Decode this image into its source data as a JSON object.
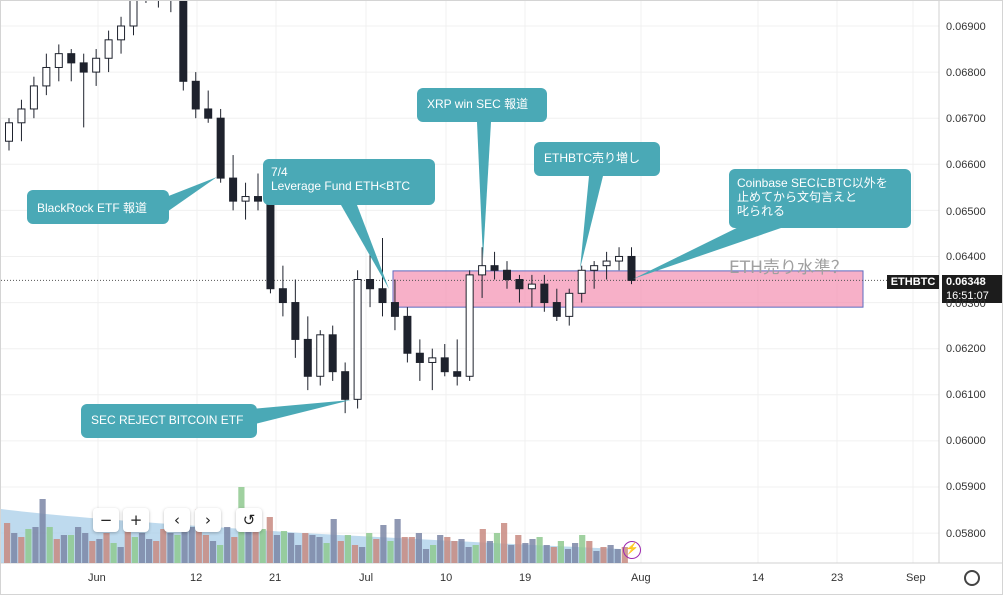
{
  "symbol": "ETHBTC",
  "last_price": "0.06348",
  "countdown": "16:51:07",
  "zone_label": "ETH売り水準？",
  "y_axis": [
    "0.06900",
    "0.06800",
    "0.06700",
    "0.06600",
    "0.06500",
    "0.06400",
    "0.06300",
    "0.06200",
    "0.06100",
    "0.06000",
    "0.05900",
    "0.05800"
  ],
  "x_axis": [
    "Jun",
    "12",
    "21",
    "Jul",
    "10",
    "19",
    "Aug",
    "14",
    "23",
    "Sep"
  ],
  "callouts": {
    "blackrock": "BlackRock ETF 報道",
    "leverage_1": "7/4",
    "leverage_2": "Leverage Fund ETH<BTC",
    "xrp": "XRP win SEC 報道",
    "ethbtc": "ETHBTC売り増し",
    "coinbase_1": "Coinbase SECにBTC以外を",
    "coinbase_2": "止めてから文句言えと",
    "coinbase_3": "叱られる",
    "sec_reject": "SEC REJECT BITCOIN ETF"
  },
  "controls": {
    "zoom_out": "−",
    "zoom_in": "+",
    "back": "‹",
    "forward": "›",
    "reset": "↺"
  },
  "icons": [
    "settings-icon",
    "lightning-icon"
  ],
  "colors": {
    "up": "#ffffff",
    "down": "#1e222d",
    "zone": "#f48fb1",
    "callout": "#4aa9b6",
    "vol_up": "#8fc98f",
    "vol_down": "#c88a80"
  },
  "chart_data": {
    "type": "candlestick",
    "symbol": "ETHBTC",
    "ylim": [
      0.0575,
      0.0699
    ],
    "xlabel": "",
    "ylabel": "",
    "candles_ohlc": [
      [
        0.0665,
        0.067,
        0.0663,
        0.0669
      ],
      [
        0.0669,
        0.0674,
        0.0665,
        0.0672
      ],
      [
        0.0672,
        0.0679,
        0.067,
        0.0677
      ],
      [
        0.0677,
        0.0684,
        0.0675,
        0.0681
      ],
      [
        0.0681,
        0.0686,
        0.0678,
        0.0684
      ],
      [
        0.0684,
        0.0685,
        0.0678,
        0.0682
      ],
      [
        0.0682,
        0.0684,
        0.0668,
        0.068
      ],
      [
        0.068,
        0.0685,
        0.0677,
        0.0683
      ],
      [
        0.0683,
        0.0689,
        0.068,
        0.0687
      ],
      [
        0.0687,
        0.0692,
        0.0684,
        0.069
      ],
      [
        0.069,
        0.0699,
        0.0688,
        0.0699
      ],
      [
        0.0699,
        0.07,
        0.0695,
        0.0698
      ],
      [
        0.0698,
        0.07,
        0.0694,
        0.0696
      ],
      [
        0.0696,
        0.0699,
        0.0693,
        0.0698
      ],
      [
        0.0698,
        0.0699,
        0.0676,
        0.0678
      ],
      [
        0.0678,
        0.068,
        0.067,
        0.0672
      ],
      [
        0.0672,
        0.0676,
        0.0669,
        0.067
      ],
      [
        0.067,
        0.0672,
        0.0656,
        0.0657
      ],
      [
        0.0657,
        0.0662,
        0.065,
        0.0652
      ],
      [
        0.0652,
        0.0656,
        0.0648,
        0.0653
      ],
      [
        0.0653,
        0.0658,
        0.065,
        0.0652
      ],
      [
        0.0652,
        0.0653,
        0.0632,
        0.0633
      ],
      [
        0.0633,
        0.0638,
        0.0627,
        0.063
      ],
      [
        0.063,
        0.0635,
        0.0618,
        0.0622
      ],
      [
        0.0622,
        0.0627,
        0.0611,
        0.0614
      ],
      [
        0.0614,
        0.0624,
        0.0612,
        0.0623
      ],
      [
        0.0623,
        0.0625,
        0.0613,
        0.0615
      ],
      [
        0.0615,
        0.0617,
        0.0606,
        0.0609
      ],
      [
        0.0609,
        0.0637,
        0.0607,
        0.0635
      ],
      [
        0.0635,
        0.0642,
        0.0629,
        0.0633
      ],
      [
        0.0633,
        0.0644,
        0.0627,
        0.063
      ],
      [
        0.063,
        0.0635,
        0.0624,
        0.0627
      ],
      [
        0.0627,
        0.0629,
        0.0617,
        0.0619
      ],
      [
        0.0619,
        0.0622,
        0.0613,
        0.0617
      ],
      [
        0.0617,
        0.062,
        0.0611,
        0.0618
      ],
      [
        0.0618,
        0.0621,
        0.0614,
        0.0615
      ],
      [
        0.0615,
        0.0622,
        0.0612,
        0.0614
      ],
      [
        0.0614,
        0.0637,
        0.0613,
        0.0636
      ],
      [
        0.0636,
        0.0642,
        0.0631,
        0.0638
      ],
      [
        0.0638,
        0.0641,
        0.0635,
        0.0637
      ],
      [
        0.0637,
        0.0639,
        0.0633,
        0.0635
      ],
      [
        0.0635,
        0.0636,
        0.063,
        0.0633
      ],
      [
        0.0633,
        0.0636,
        0.0629,
        0.0634
      ],
      [
        0.0634,
        0.0636,
        0.0628,
        0.063
      ],
      [
        0.063,
        0.0633,
        0.0626,
        0.0627
      ],
      [
        0.0627,
        0.0633,
        0.0625,
        0.0632
      ],
      [
        0.0632,
        0.0638,
        0.063,
        0.0637
      ],
      [
        0.0637,
        0.0639,
        0.0633,
        0.0638
      ],
      [
        0.0638,
        0.0641,
        0.0635,
        0.0639
      ],
      [
        0.0639,
        0.0642,
        0.0637,
        0.064
      ],
      [
        0.064,
        0.0642,
        0.0634,
        0.06348
      ]
    ],
    "zone": [
      0.0629,
      0.0636
    ]
  }
}
